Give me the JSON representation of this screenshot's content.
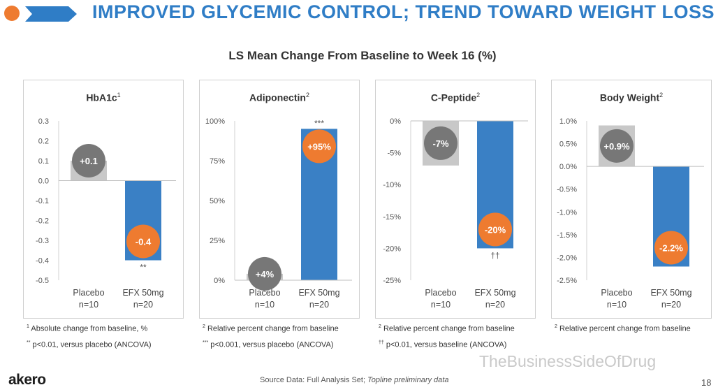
{
  "slide": {
    "title": "IMPROVED GLYCEMIC CONTROL; TREND TOWARD WEIGHT LOSS",
    "subtitle": "LS Mean Change From Baseline to Week 16 (%)",
    "logo": "akero",
    "source_prefix": "Source Data: Full Analysis Set; ",
    "source_italic": "Topline preliminary data",
    "watermark": "TheBusinessSideOfDrug",
    "page_number": "18"
  },
  "colors": {
    "title": "#2f7dc6",
    "placebo_bar": "#c8c8c8",
    "efx_bar": "#3a80c5",
    "placebo_bubble": "#777777",
    "efx_bubble": "#ee7b30",
    "accent_dot": "#ee7b30"
  },
  "chart_data": [
    {
      "type": "bar",
      "title": "HbA1c",
      "title_sup": "1",
      "ylim": [
        -0.5,
        0.3
      ],
      "yticks": [
        0.3,
        0.2,
        0.1,
        0.0,
        -0.1,
        -0.2,
        -0.3,
        -0.4,
        -0.5
      ],
      "ytick_labels": [
        "0.3",
        "0.2",
        "0.1",
        "0.0",
        "-0.1",
        "-0.2",
        "-0.3",
        "-0.4",
        "-0.5"
      ],
      "categories": [
        "Placebo",
        "EFX 50mg"
      ],
      "n_labels": [
        "n=10",
        "n=20"
      ],
      "values": [
        0.1,
        -0.4
      ],
      "data_labels": [
        "+0.1",
        "-0.4"
      ],
      "significance": "**",
      "footnotes": [
        "Absolute change from baseline, %",
        "p<0.01, versus placebo (ANCOVA)"
      ],
      "footnote_marks": [
        "1",
        "**"
      ]
    },
    {
      "type": "bar",
      "title": "Adiponectin",
      "title_sup": "2",
      "ylim": [
        0,
        100
      ],
      "yticks": [
        100,
        75,
        50,
        25,
        0
      ],
      "ytick_labels": [
        "100%",
        "75%",
        "50%",
        "25%",
        "0%"
      ],
      "categories": [
        "Placebo",
        "EFX 50mg"
      ],
      "n_labels": [
        "n=10",
        "n=20"
      ],
      "values": [
        4,
        95
      ],
      "data_labels": [
        "+4%",
        "+95%"
      ],
      "significance": "***",
      "footnotes": [
        "Relative percent change from baseline",
        "p<0.001, versus placebo (ANCOVA)"
      ],
      "footnote_marks": [
        "2",
        "***"
      ]
    },
    {
      "type": "bar",
      "title": "C-Peptide",
      "title_sup": "2",
      "ylim": [
        -25,
        0
      ],
      "yticks": [
        0,
        -5,
        -10,
        -15,
        -20,
        -25
      ],
      "ytick_labels": [
        "0%",
        "-5%",
        "-10%",
        "-15%",
        "-20%",
        "-25%"
      ],
      "categories": [
        "Placebo",
        "EFX 50mg"
      ],
      "n_labels": [
        "n=10",
        "n=20"
      ],
      "values": [
        -7,
        -20
      ],
      "data_labels": [
        "-7%",
        "-20%"
      ],
      "significance": "††",
      "footnotes": [
        "Relative percent change from baseline",
        "p<0.01, versus baseline (ANCOVA)"
      ],
      "footnote_marks": [
        "2",
        "††"
      ]
    },
    {
      "type": "bar",
      "title": "Body Weight",
      "title_sup": "2",
      "ylim": [
        -2.5,
        1.0
      ],
      "yticks": [
        1.0,
        0.5,
        0.0,
        -0.5,
        -1.0,
        -1.5,
        -2.0,
        -2.5
      ],
      "ytick_labels": [
        "1.0%",
        "0.5%",
        "0.0%",
        "-0.5%",
        "-1.0%",
        "-1.5%",
        "-2.0%",
        "-2.5%"
      ],
      "categories": [
        "Placebo",
        "EFX 50mg"
      ],
      "n_labels": [
        "n=10",
        "n=20"
      ],
      "values": [
        0.9,
        -2.2
      ],
      "data_labels": [
        "+0.9%",
        "-2.2%"
      ],
      "significance": "",
      "footnotes": [
        "Relative percent change from baseline"
      ],
      "footnote_marks": [
        "2"
      ]
    }
  ]
}
